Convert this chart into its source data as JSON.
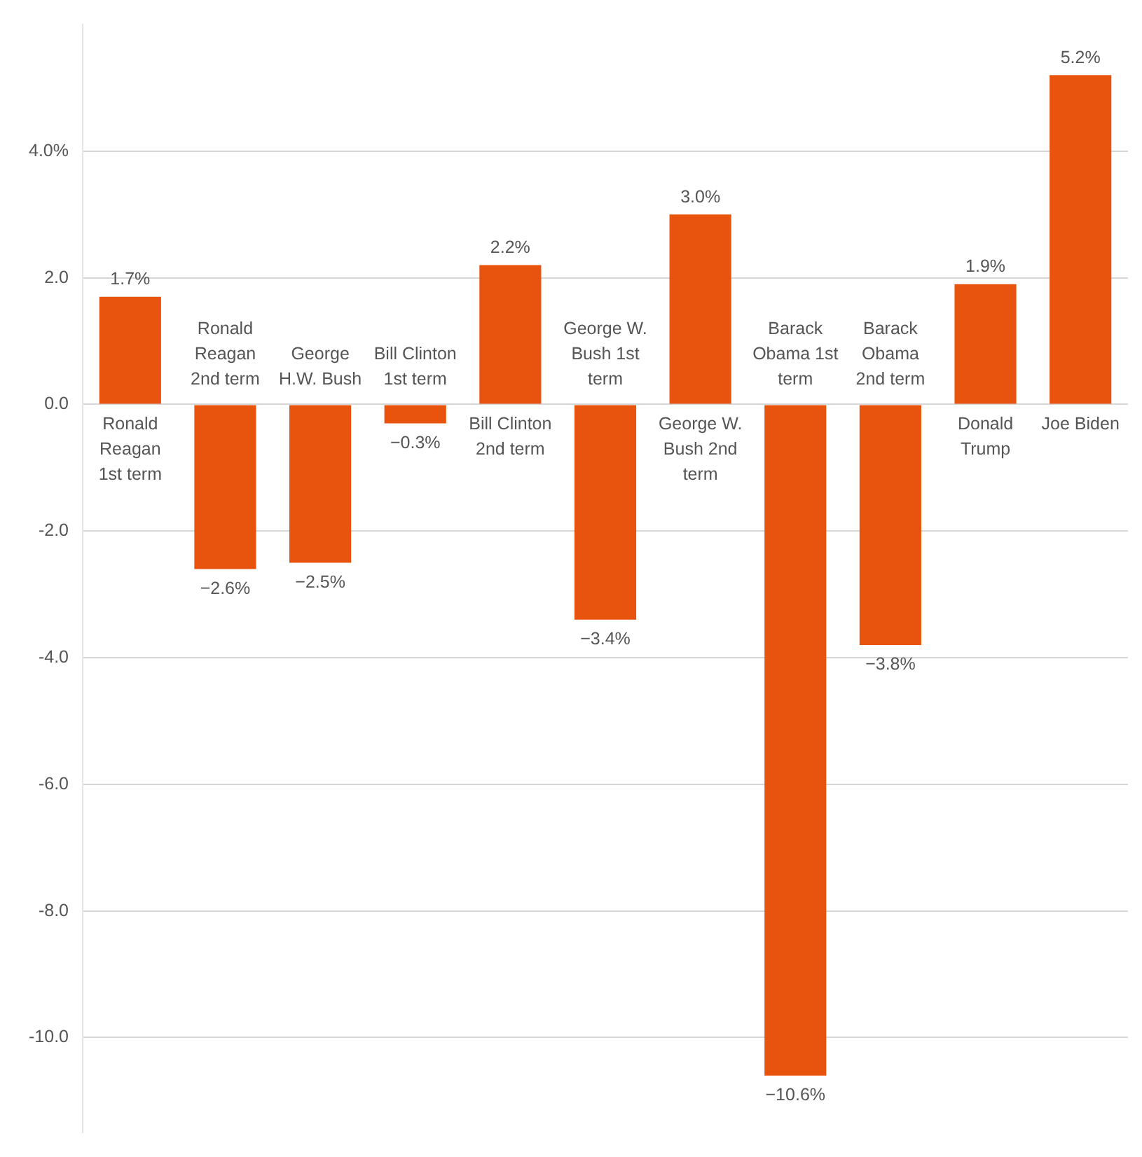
{
  "chart_data": {
    "type": "bar",
    "categories": [
      "Ronald Reagan 1st term",
      "Ronald Reagan 2nd term",
      "George H.W. Bush",
      "Bill Clinton 1st term",
      "Bill Clinton 2nd term",
      "George W. Bush 1st term",
      "George W. Bush 2nd term",
      "Barack Obama 1st term",
      "Barack Obama 2nd term",
      "Donald Trump",
      "Joe Biden"
    ],
    "values": [
      1.7,
      -2.6,
      -2.5,
      -0.3,
      2.2,
      -3.4,
      3.0,
      -10.6,
      -3.8,
      1.9,
      5.2
    ],
    "value_labels": [
      "1.7%",
      "−2.6%",
      "−2.5%",
      "−0.3%",
      "2.2%",
      "−3.4%",
      "3.0%",
      "−10.6%",
      "−3.8%",
      "1.9%",
      "5.2%"
    ],
    "color": "#e8530e",
    "ylim": [
      -11.5,
      6
    ],
    "yticks": [
      {
        "value": 4,
        "label": "4.0%"
      },
      {
        "value": 2,
        "label": "2.0"
      },
      {
        "value": 0,
        "label": "0.0"
      },
      {
        "value": -2,
        "label": "-2.0"
      },
      {
        "value": -4,
        "label": "-4.0"
      },
      {
        "value": -6,
        "label": "-6.0"
      },
      {
        "value": -8,
        "label": "-8.0"
      },
      {
        "value": -10,
        "label": "-10.0"
      }
    ],
    "grid": "y",
    "legend": false
  }
}
